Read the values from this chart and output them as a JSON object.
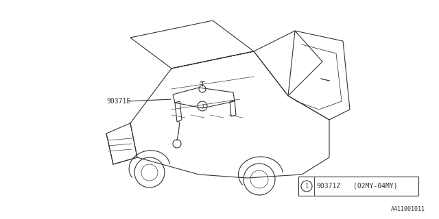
{
  "background_color": "#ffffff",
  "line_color": "#333333",
  "text_color": "#333333",
  "label_90371E": "90371E",
  "label_90371Z": "90371Z",
  "label_model": "(02MY-04MY)",
  "label_diagram_id": "A411001011",
  "circle_label": "1",
  "figure_width": 6.4,
  "figure_height": 3.2,
  "dpi": 100
}
